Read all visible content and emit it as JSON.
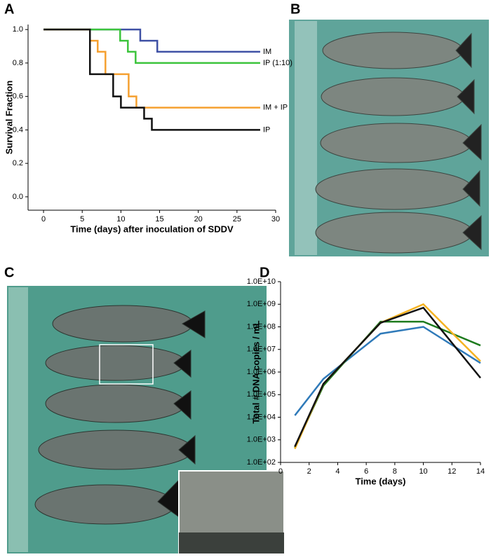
{
  "panels": [
    "A",
    "B",
    "C",
    "D"
  ],
  "chart_data": [
    {
      "type": "line",
      "step": true,
      "xlabel": "Time (days) after inoculation of SDDV",
      "ylabel": "Survival Fraction",
      "xlim": [
        -2,
        30
      ],
      "ylim": [
        -0.08,
        1.03
      ],
      "xticks": [
        0,
        5,
        10,
        15,
        20,
        25,
        30
      ],
      "yticks": [
        {
          "value": 0,
          "label": "0.0"
        },
        0.2,
        0.4,
        0.6,
        0.8,
        {
          "value": 1,
          "label": "1.0"
        }
      ],
      "series": [
        {
          "name": "IM",
          "color": "#3f51a5",
          "x": [
            0,
            12.5,
            14.7,
            28
          ],
          "values": [
            1,
            0.933,
            0.867,
            0.867
          ]
        },
        {
          "name": "IP (1:10)",
          "color": "#3cc43c",
          "x": [
            0,
            9.9,
            10.9,
            11.9,
            28
          ],
          "values": [
            1,
            0.933,
            0.867,
            0.8,
            0.8
          ]
        },
        {
          "name": "IM + IP",
          "color": "#f5a030",
          "x": [
            0,
            6,
            7,
            8,
            11,
            12,
            28
          ],
          "values": [
            1,
            0.933,
            0.867,
            0.733,
            0.6,
            0.533,
            0.533
          ]
        },
        {
          "name": "IP",
          "color": "#111111",
          "x": [
            0,
            6,
            9,
            10,
            13,
            14,
            28
          ],
          "values": [
            1,
            0.733,
            0.6,
            0.533,
            0.467,
            0.4,
            0.4
          ]
        }
      ]
    },
    {
      "type": "line",
      "log_y": true,
      "xlabel": "Time (days)",
      "ylabel": "Total # DNA copies / mL",
      "xlim": [
        0,
        14
      ],
      "ylim": [
        100,
        10000000000
      ],
      "xticks": [
        0,
        2,
        4,
        6,
        8,
        10,
        12,
        14
      ],
      "yticks": [
        {
          "value": 100,
          "label": "1.0E+02"
        },
        {
          "value": 1000,
          "label": "1.0E+03"
        },
        {
          "value": 10000,
          "label": "1.0E+04"
        },
        {
          "value": 100000,
          "label": "1.0E+05"
        },
        {
          "value": 1000000,
          "label": "1.0E+06"
        },
        {
          "value": 10000000,
          "label": "1.0E+07"
        },
        {
          "value": 100000000,
          "label": "1.0E+08"
        },
        {
          "value": 1000000000,
          "label": "1.0E+09"
        },
        {
          "value": 10000000000,
          "label": "1.0E+10"
        }
      ],
      "x": [
        1,
        3,
        7,
        10,
        14
      ],
      "series": [
        {
          "color": "#2f7ab9",
          "values": [
            12000,
            500000,
            50000000,
            100000000,
            2500000
          ]
        },
        {
          "color": "#1e7b1e",
          "values": [
            450,
            250000,
            170000000,
            170000000,
            15000000
          ]
        },
        {
          "color": "#f5b323",
          "values": [
            400,
            300000,
            150000000,
            1000000000,
            3000000
          ]
        },
        {
          "color": "#111111",
          "values": [
            500,
            300000,
            150000000,
            700000000,
            550000
          ]
        }
      ]
    }
  ]
}
